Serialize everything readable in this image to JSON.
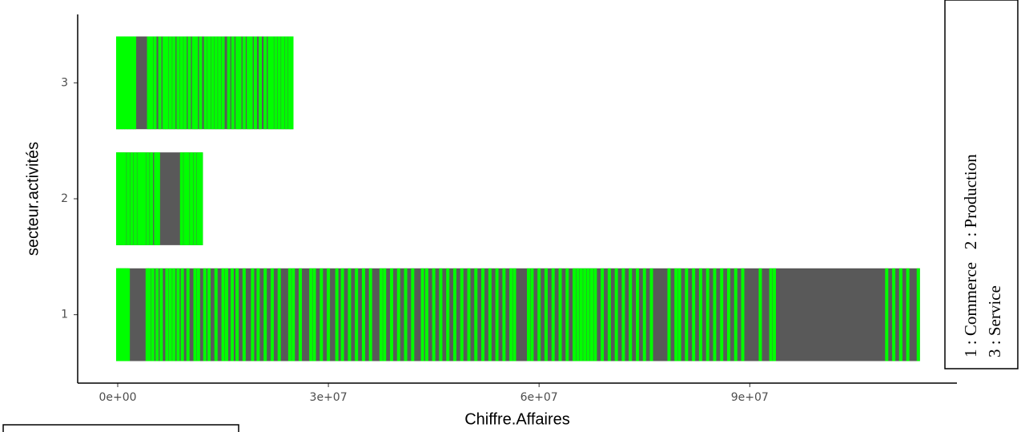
{
  "chart_data": {
    "type": "barcode",
    "x_label": "Chiffre.Affaires",
    "y_label": "secteur.activités",
    "annotations": [
      "1 : Commerce   2 : Production",
      "3 : Service"
    ],
    "categories": [
      "1",
      "2",
      "3"
    ],
    "x": [
      [
        0,
        300000.0,
        600000.0,
        900000.0,
        1200000.0,
        1500000.0,
        4200000.0,
        4500000.0,
        5000000.0,
        5600000.0,
        6200000.0,
        7000000.0,
        7500000.0,
        8000000.0,
        8600000.0,
        9200000.0,
        10000000.0,
        11000000.0,
        11500000.0,
        12400000.0,
        13000000.0,
        14000000.0,
        15000000.0,
        15500000.0,
        16300000.0,
        17000000.0,
        18000000.0,
        19200000.0,
        20000000.0,
        21000000.0,
        22000000.0,
        23000000.0,
        24500000.0,
        25000000.0,
        26000000.0,
        27500000.0,
        28000000.0,
        29000000.0,
        30000000.0,
        31200000.0,
        32000000.0,
        33000000.0,
        34000000.0,
        35000000.0,
        36000000.0,
        37500000.0,
        38000000.0,
        39000000.0,
        40000000.0,
        41000000.0,
        42000000.0,
        43400000.0,
        44000000.0,
        45000000.0,
        46000000.0,
        47000000.0,
        48000000.0,
        49000000.0,
        50000000.0,
        51000000.0,
        52000000.0,
        53000000.0,
        54000000.0,
        55000000.0,
        56000000.0,
        56500000.0,
        58500000.0,
        59000000.0,
        60000000.0,
        61000000.0,
        62000000.0,
        63000000.0,
        64000000.0,
        65000000.0,
        65500000.0,
        66000000.0,
        66500000.0,
        67000000.0,
        67500000.0,
        68000000.0,
        69000000.0,
        70000000.0,
        71000000.0,
        72000000.0,
        73000000.0,
        74000000.0,
        75000000.0,
        76000000.0,
        78500000.0,
        79500000.0,
        80000000.0,
        81000000.0,
        82000000.0,
        83000000.0,
        84000000.0,
        85000000.0,
        86000000.0,
        87000000.0,
        88000000.0,
        89000000.0,
        91500000.0,
        93000000.0,
        93500000.0,
        109500000.0,
        110500000.0,
        111500000.0,
        112500000.0,
        114000000.0
      ],
      [
        0,
        300000.0,
        700000.0,
        1000000.0,
        1500000.0,
        2000000.0,
        2500000.0,
        3000000.0,
        3400000.0,
        3800000.0,
        4300000.0,
        4800000.0,
        5400000.0,
        5800000.0,
        9100000.0,
        9600000.0,
        10000000.0,
        10500000.0,
        11000000.0,
        11500000.0,
        11900000.0
      ],
      [
        0,
        400000.0,
        800000.0,
        1200000.0,
        1600000.0,
        2000000.0,
        2400000.0,
        4400000.0,
        4800000.0,
        5300000.0,
        6000000.0,
        6600000.0,
        7000000.0,
        7500000.0,
        8000000.0,
        8600000.0,
        9100000.0,
        9600000.0,
        10200000.0,
        10800000.0,
        11200000.0,
        11800000.0,
        12500000.0,
        13000000.0,
        13500000.0,
        14000000.0,
        14500000.0,
        15000000.0,
        15800000.0,
        16400000.0,
        17000000.0,
        17400000.0,
        18000000.0,
        18600000.0,
        19000000.0,
        19600000.0,
        20300000.0,
        21000000.0,
        21600000.0,
        22000000.0,
        22500000.0,
        23000000.0,
        23500000.0,
        24000000.0,
        24500000.0,
        24800000.0
      ]
    ],
    "tile_color": "#00ff00",
    "gap_color": "#595959",
    "xlim": [
      -5700000.0,
      119500000.0
    ],
    "xticks": [
      {
        "value": 0,
        "label": "0e+00"
      },
      {
        "value": 30000000,
        "label": "3e+07"
      },
      {
        "value": 60000000,
        "label": "6e+07"
      },
      {
        "value": 90000000,
        "label": "9e+07"
      }
    ],
    "ylim": [
      0.41,
      3.59
    ],
    "grid": false
  }
}
